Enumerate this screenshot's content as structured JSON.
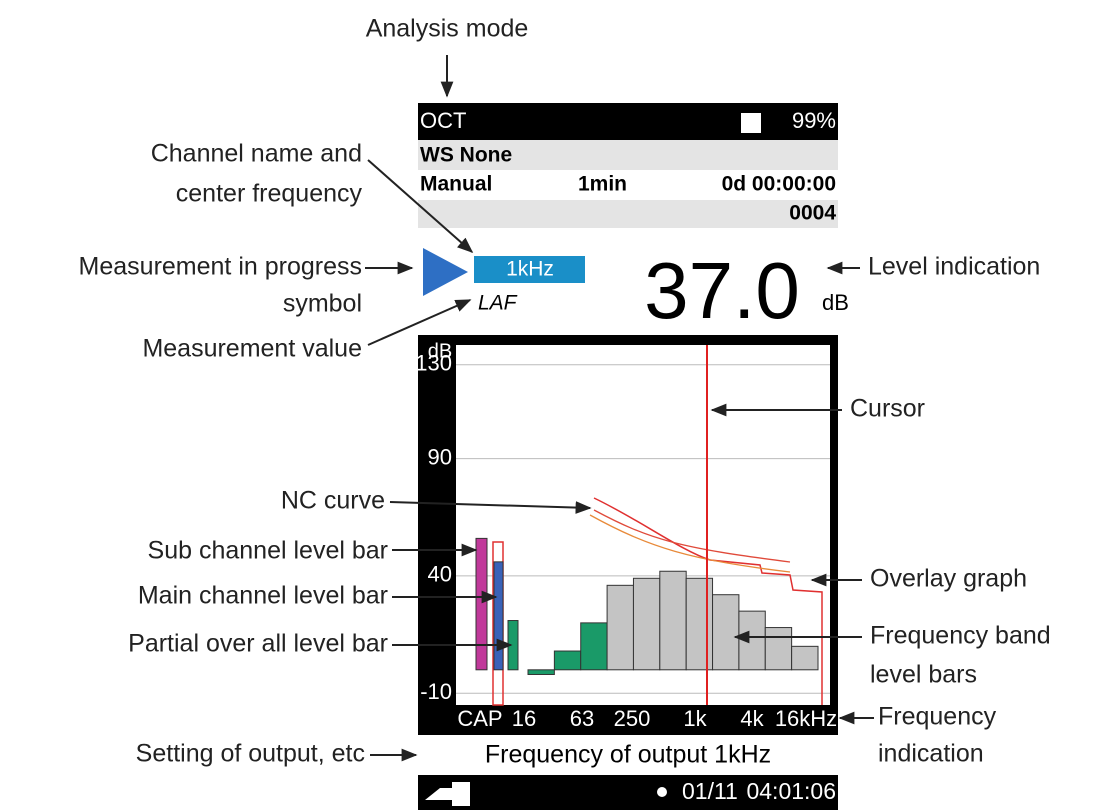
{
  "annotations": {
    "analysis_mode": "Analysis mode",
    "channel_name": {
      "lines": [
        "Channel name and",
        "center frequency"
      ]
    },
    "measurement_progress": {
      "lines": [
        "Measurement in progress",
        "symbol"
      ]
    },
    "level_indication": "Level indication",
    "measurement_value": "Measurement value",
    "cursor": "Cursor",
    "nc_curve": "NC curve",
    "sub_channel": "Sub channel level bar",
    "main_channel": "Main channel level bar",
    "partial_overall": "Partial over all level bar",
    "overlay_graph": "Overlay graph",
    "frequency_band": {
      "lines": [
        "Frequency band",
        "level bars"
      ]
    },
    "frequency_indication": {
      "lines": [
        "Frequency",
        "indication"
      ]
    },
    "output_setting": "Setting of output, etc"
  },
  "screen": {
    "mode": "OCT",
    "battery": "99%",
    "weighting": "WS None",
    "timer_mode": "Manual",
    "interval": "1min",
    "elapsed": "0d 00:00:00",
    "file_number": "0004",
    "channel": "1kHz",
    "level": "37.0",
    "level_unit": "dB",
    "measure": "LAF",
    "graph": {
      "unit": "dB",
      "ylim": [
        -15,
        135
      ],
      "yticks": [
        130,
        90,
        40,
        -10
      ],
      "freq_labels": [
        "CAP",
        "16",
        "63",
        "250",
        "1k",
        "4k",
        "16kHz"
      ],
      "sub_bar": 56,
      "sub_color": "#c0399a",
      "main_bar": 46,
      "main_color": "#3a62b8",
      "partial_bar": 21,
      "partial_color": "#1a9a68",
      "band_bars": [
        -2,
        8,
        20,
        36,
        39,
        42,
        39,
        32,
        25,
        18,
        10
      ],
      "band_colors": [
        "#1a9a68",
        "#1a9a68",
        "#1a9a68",
        "#c4c4c4",
        "#c4c4c4",
        "#c4c4c4",
        "#c4c4c4",
        "#c4c4c4",
        "#c4c4c4",
        "#c4c4c4",
        "#c4c4c4"
      ]
    },
    "output": "Frequency of output 1kHz",
    "date": "01/11",
    "time": "04:01:06"
  }
}
